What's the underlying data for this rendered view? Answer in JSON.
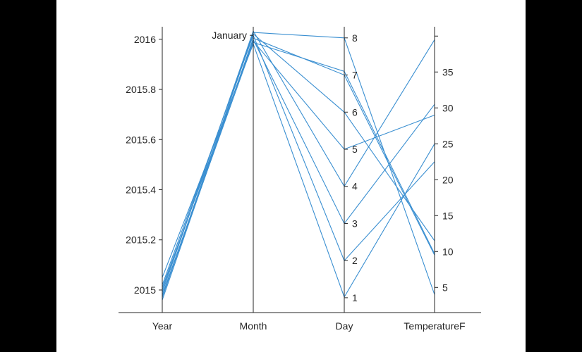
{
  "chart_data": {
    "type": "parallel_coordinates",
    "title": "",
    "line_color": "#3a8fd1",
    "axis_color": "#262626",
    "axes": [
      {
        "name": "Year",
        "range": [
          2014.91,
          2016.05
        ],
        "ticks": [
          2015,
          2015.2,
          2015.4,
          2015.6,
          2015.8,
          2016
        ],
        "tick_labels": [
          "2015",
          "2015.2",
          "2015.4",
          "2015.6",
          "2015.8",
          "2016"
        ],
        "tick_side": "left"
      },
      {
        "name": "Month",
        "categorical": true,
        "range": [
          0,
          1
        ],
        "ticks": [
          0.97
        ],
        "tick_labels": [
          "January"
        ],
        "tick_side": "left"
      },
      {
        "name": "Day",
        "range": [
          0.6,
          8.3
        ],
        "ticks": [
          1,
          2,
          3,
          4,
          5,
          6,
          7,
          8
        ],
        "tick_labels": [
          "1",
          "2",
          "3",
          "4",
          "5",
          "6",
          "7",
          "8"
        ],
        "tick_side": "right"
      },
      {
        "name": "TemperatureF",
        "range": [
          1.5,
          41.3
        ],
        "ticks": [
          5,
          10,
          15,
          20,
          25,
          30,
          35,
          40
        ],
        "tick_labels": [
          "5",
          "10",
          "15",
          "20",
          "25",
          "30",
          "35",
          ""
        ],
        "tick_side": "right"
      }
    ],
    "series": [
      {
        "values": [
          2015.0,
          0.98,
          8,
          4
        ]
      },
      {
        "values": [
          2014.96,
          0.96,
          7,
          9.5
        ]
      },
      {
        "values": [
          2014.97,
          0.975,
          6,
          11.5
        ]
      },
      {
        "values": [
          2015.01,
          0.95,
          5,
          29
        ]
      },
      {
        "values": [
          2014.99,
          0.985,
          4,
          39.5
        ]
      },
      {
        "values": [
          2014.98,
          0.955,
          3,
          30.5
        ]
      },
      {
        "values": [
          2015.02,
          0.97,
          2,
          22.5
        ]
      },
      {
        "values": [
          2015.05,
          0.94,
          1.02,
          25
        ]
      },
      {
        "values": [
          2014.975,
          0.945,
          7.1,
          9.7
        ]
      }
    ]
  }
}
